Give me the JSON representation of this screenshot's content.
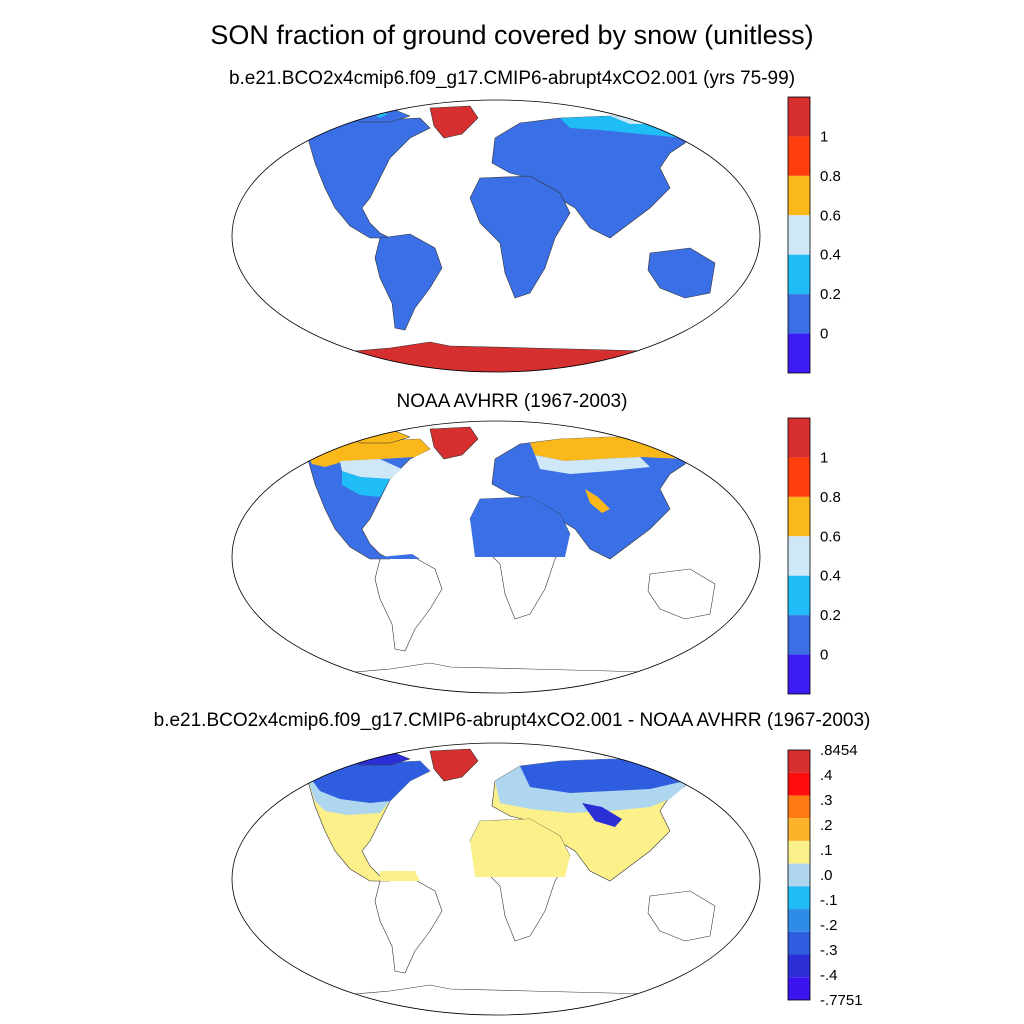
{
  "title": "SON fraction of ground covered by snow (unitless)",
  "panels": [
    {
      "subtitle": "b.e21.BCO2x4cmip6.f09_g17.CMIP6-abrupt4xCO2.001 (yrs 75-99)",
      "colorbar": {
        "labels": [
          "1",
          "0.8",
          "0.6",
          "0.4",
          "0.2",
          "0"
        ],
        "colors": [
          "#d62f2f",
          "#ff3d0d",
          "#fbb81b",
          "#cfe8f7",
          "#1fbcf5",
          "#3a6fe6",
          "#3b1cf2"
        ]
      }
    },
    {
      "subtitle": "NOAA AVHRR (1967-2003)",
      "colorbar": {
        "labels": [
          "1",
          "0.8",
          "0.6",
          "0.4",
          "0.2",
          "0"
        ],
        "colors": [
          "#d62f2f",
          "#ff3d0d",
          "#fbb81b",
          "#cfe8f7",
          "#1fbcf5",
          "#3a6fe6",
          "#3b1cf2"
        ]
      }
    },
    {
      "subtitle": "b.e21.BCO2x4cmip6.f09_g17.CMIP6-abrupt4xCO2.001 - NOAA AVHRR (1967-2003)",
      "colorbar": {
        "labels": [
          ".8454",
          ".4",
          ".3",
          ".2",
          ".1",
          ".0",
          "-.1",
          "-.2",
          "-.3",
          "-.4",
          "-.7751"
        ],
        "colors": [
          "#d62f2f",
          "#ff0d0d",
          "#ff7a12",
          "#fdb22b",
          "#fbf08a",
          "#aed6ee",
          "#1fbcf5",
          "#2f8be8",
          "#2f5de0",
          "#2d2fd6",
          "#3b14f0"
        ]
      }
    }
  ]
}
